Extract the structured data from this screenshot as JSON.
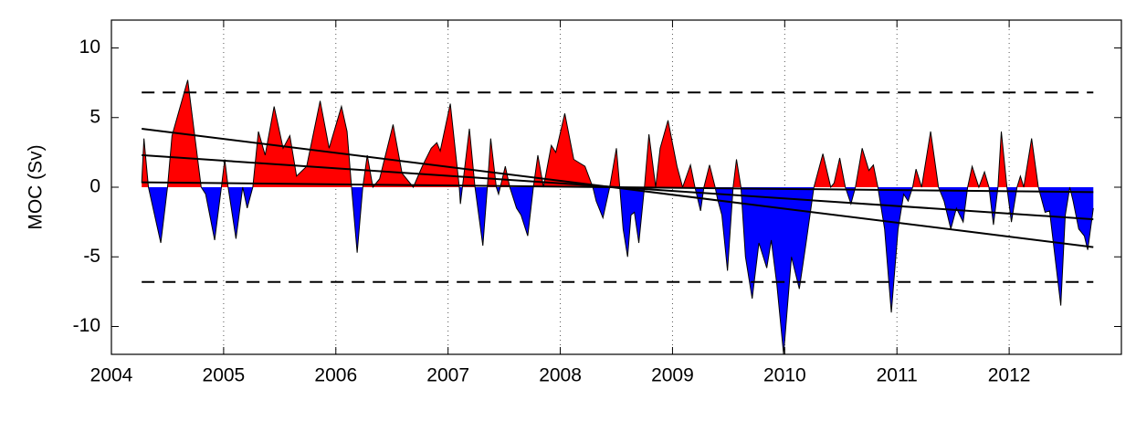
{
  "chart_data": {
    "type": "area",
    "ylabel": "MOC  (Sv)",
    "x": [
      2004.27,
      2004.29,
      2004.33,
      2004.44,
      2004.5,
      2004.54,
      2004.68,
      2004.8,
      2004.84,
      2004.92,
      2004.98,
      2005.01,
      2005.04,
      2005.11,
      2005.17,
      2005.21,
      2005.26,
      2005.31,
      2005.37,
      2005.45,
      2005.53,
      2005.59,
      2005.65,
      2005.74,
      2005.86,
      2005.94,
      2006.05,
      2006.1,
      2006.14,
      2006.19,
      2006.24,
      2006.28,
      2006.33,
      2006.39,
      2006.51,
      2006.59,
      2006.69,
      2006.77,
      2006.85,
      2006.9,
      2006.93,
      2007.02,
      2007.1,
      2007.11,
      2007.19,
      2007.24,
      2007.31,
      2007.35,
      2007.38,
      2007.43,
      2007.45,
      2007.51,
      2007.55,
      2007.61,
      2007.65,
      2007.71,
      2007.76,
      2007.8,
      2007.85,
      2007.92,
      2007.96,
      2008.04,
      2008.12,
      2008.22,
      2008.29,
      2008.32,
      2008.38,
      2008.44,
      2008.5,
      2008.53,
      2008.56,
      2008.6,
      2008.63,
      2008.66,
      2008.7,
      2008.75,
      2008.79,
      2008.85,
      2008.89,
      2008.96,
      2009.04,
      2009.09,
      2009.16,
      2009.2,
      2009.25,
      2009.28,
      2009.33,
      2009.38,
      2009.4,
      2009.44,
      2009.49,
      2009.54,
      2009.57,
      2009.61,
      2009.65,
      2009.71,
      2009.77,
      2009.84,
      2009.88,
      2009.93,
      2009.99,
      2010.06,
      2010.13,
      2010.19,
      2010.26,
      2010.34,
      2010.41,
      2010.44,
      2010.49,
      2010.54,
      2010.59,
      2010.63,
      2010.69,
      2010.75,
      2010.79,
      2010.83,
      2010.89,
      2010.95,
      2011.01,
      2011.06,
      2011.1,
      2011.14,
      2011.17,
      2011.22,
      2011.26,
      2011.3,
      2011.37,
      2011.42,
      2011.48,
      2011.53,
      2011.59,
      2011.63,
      2011.67,
      2011.73,
      2011.78,
      2011.82,
      2011.86,
      2011.9,
      2011.93,
      2011.98,
      2012.02,
      2012.07,
      2012.1,
      2012.13,
      2012.2,
      2012.26,
      2012.32,
      2012.36,
      2012.46,
      2012.5,
      2012.54,
      2012.57,
      2012.62,
      2012.67,
      2012.7,
      2012.75
    ],
    "series": [
      {
        "values": [
          0.3,
          3.5,
          0,
          -4,
          0,
          3.7,
          7.7,
          0,
          -0.5,
          -3.8,
          0,
          2,
          0,
          -3.7,
          0,
          -1.5,
          0,
          4,
          2.3,
          5.8,
          2.8,
          3.7,
          0.8,
          1.5,
          6.2,
          2.8,
          5.8,
          4,
          0,
          -4.7,
          0,
          2.3,
          0,
          0.6,
          4.5,
          1,
          0,
          1.5,
          2.8,
          3.2,
          2.6,
          6,
          0,
          -1.2,
          4.2,
          0,
          -4.2,
          0,
          3.5,
          0,
          -0.5,
          1.5,
          0,
          -1.5,
          -2,
          -3.5,
          0,
          2.3,
          0,
          3,
          2.5,
          5.3,
          2,
          1.5,
          0,
          -1,
          -2.2,
          0,
          2.8,
          0,
          -3,
          -5,
          -2,
          -1.8,
          -4,
          0,
          3.8,
          0,
          2.8,
          4.8,
          1.5,
          0,
          1.6,
          0,
          -1.7,
          0,
          1.6,
          0,
          -0.8,
          -2,
          -6,
          0,
          2,
          0,
          -5,
          -8,
          -4,
          -5.8,
          -3.8,
          -7,
          -12,
          -5,
          -7.3,
          -4,
          0,
          2.4,
          0,
          0.3,
          2.1,
          0,
          -1.2,
          0,
          2.8,
          1.2,
          1.6,
          0,
          -3,
          -9,
          -3,
          -0.5,
          -1,
          0,
          1.3,
          0,
          2,
          4,
          0,
          -1,
          -3,
          -1.5,
          -2.5,
          0,
          1.5,
          0,
          1.1,
          0,
          -2.7,
          0,
          4,
          0,
          -2.5,
          0,
          0.8,
          0,
          3.5,
          0,
          -1.8,
          -1.7,
          -8.5,
          -2,
          0,
          -1,
          -3,
          -3.5,
          -4.5,
          -1.5
        ]
      }
    ],
    "positive_color": "#ff0000",
    "negative_color": "#0000ff",
    "trend_lines": [
      {
        "x": [
          2004.27,
          2012.75
        ],
        "values": [
          4.2,
          -4.3
        ]
      },
      {
        "x": [
          2004.27,
          2012.75
        ],
        "values": [
          2.3,
          -2.3
        ]
      },
      {
        "x": [
          2004.27,
          2012.75
        ],
        "values": [
          0.35,
          -0.35
        ]
      }
    ],
    "reference_lines": {
      "x": [
        2004.27,
        2012.75
      ],
      "values": [
        6.8,
        -6.8
      ]
    },
    "xlim": [
      2004,
      2013
    ],
    "xticks": [
      2004,
      2005,
      2006,
      2007,
      2008,
      2009,
      2010,
      2011,
      2012
    ],
    "ylim": [
      -12,
      12
    ],
    "yticks": [
      -10,
      -5,
      0,
      5,
      10
    ],
    "xgrid": true
  }
}
